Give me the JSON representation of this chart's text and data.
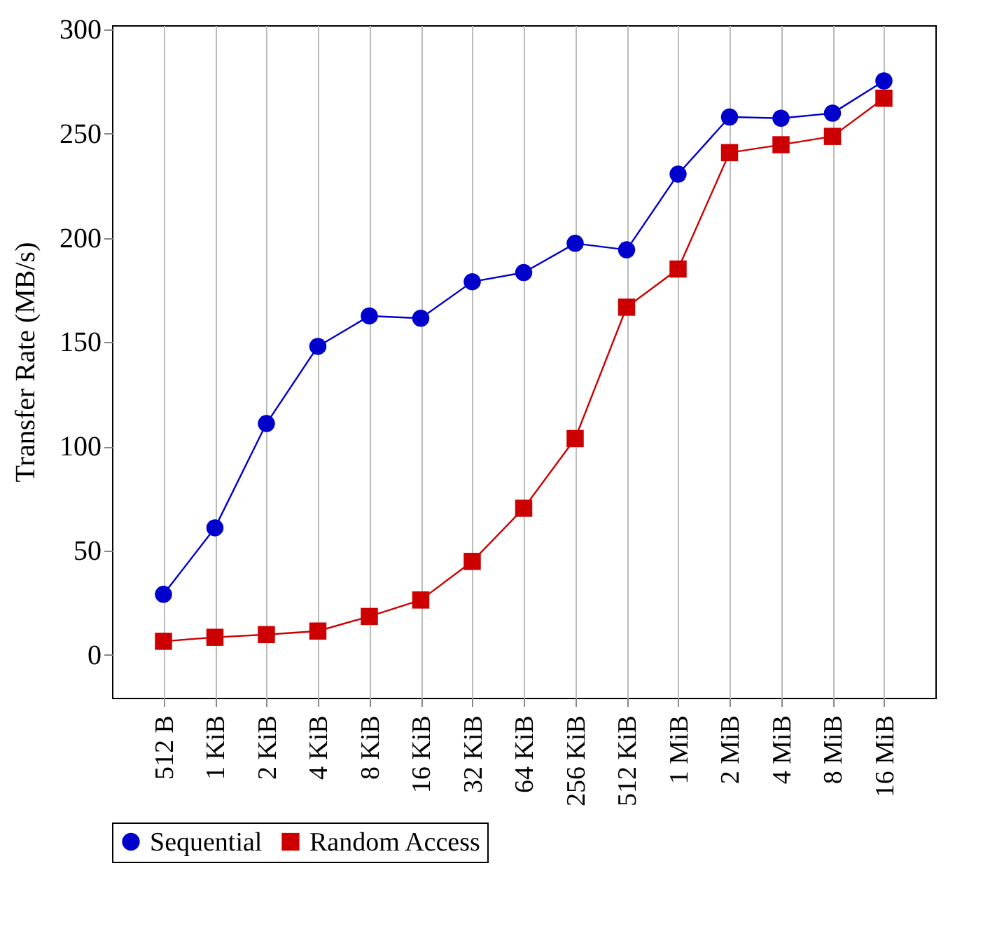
{
  "chart_data": {
    "type": "line",
    "ylabel": "Transfer Rate (MB/s)",
    "categories": [
      "512 B",
      "1 KiB",
      "2 KiB",
      "4 KiB",
      "8 KiB",
      "16 KiB",
      "32 KiB",
      "64 KiB",
      "256 KiB",
      "512 KiB",
      "1 MiB",
      "2 MiB",
      "4 MiB",
      "8 MiB",
      "16 MiB"
    ],
    "series": [
      {
        "name": "Sequential",
        "color": "#0000cc",
        "marker": "circle",
        "values": [
          29.1,
          61,
          111,
          148,
          162.6,
          161.5,
          179,
          183.4,
          197.4,
          194.3,
          230.6,
          258,
          257.4,
          259.8,
          275.3
        ]
      },
      {
        "name": "Random Access",
        "color": "#cc0000",
        "marker": "square",
        "values": [
          6.6,
          8.5,
          9.8,
          11.5,
          18.5,
          26.4,
          44.9,
          70.4,
          103.8,
          166.8,
          185.1,
          240.9,
          244.7,
          248.7,
          267
        ]
      }
    ],
    "ylim": [
      -20.5,
      302
    ],
    "yticks": [
      0,
      50,
      100,
      150,
      200,
      250,
      300
    ],
    "grid": "x",
    "legend": "bottom"
  }
}
